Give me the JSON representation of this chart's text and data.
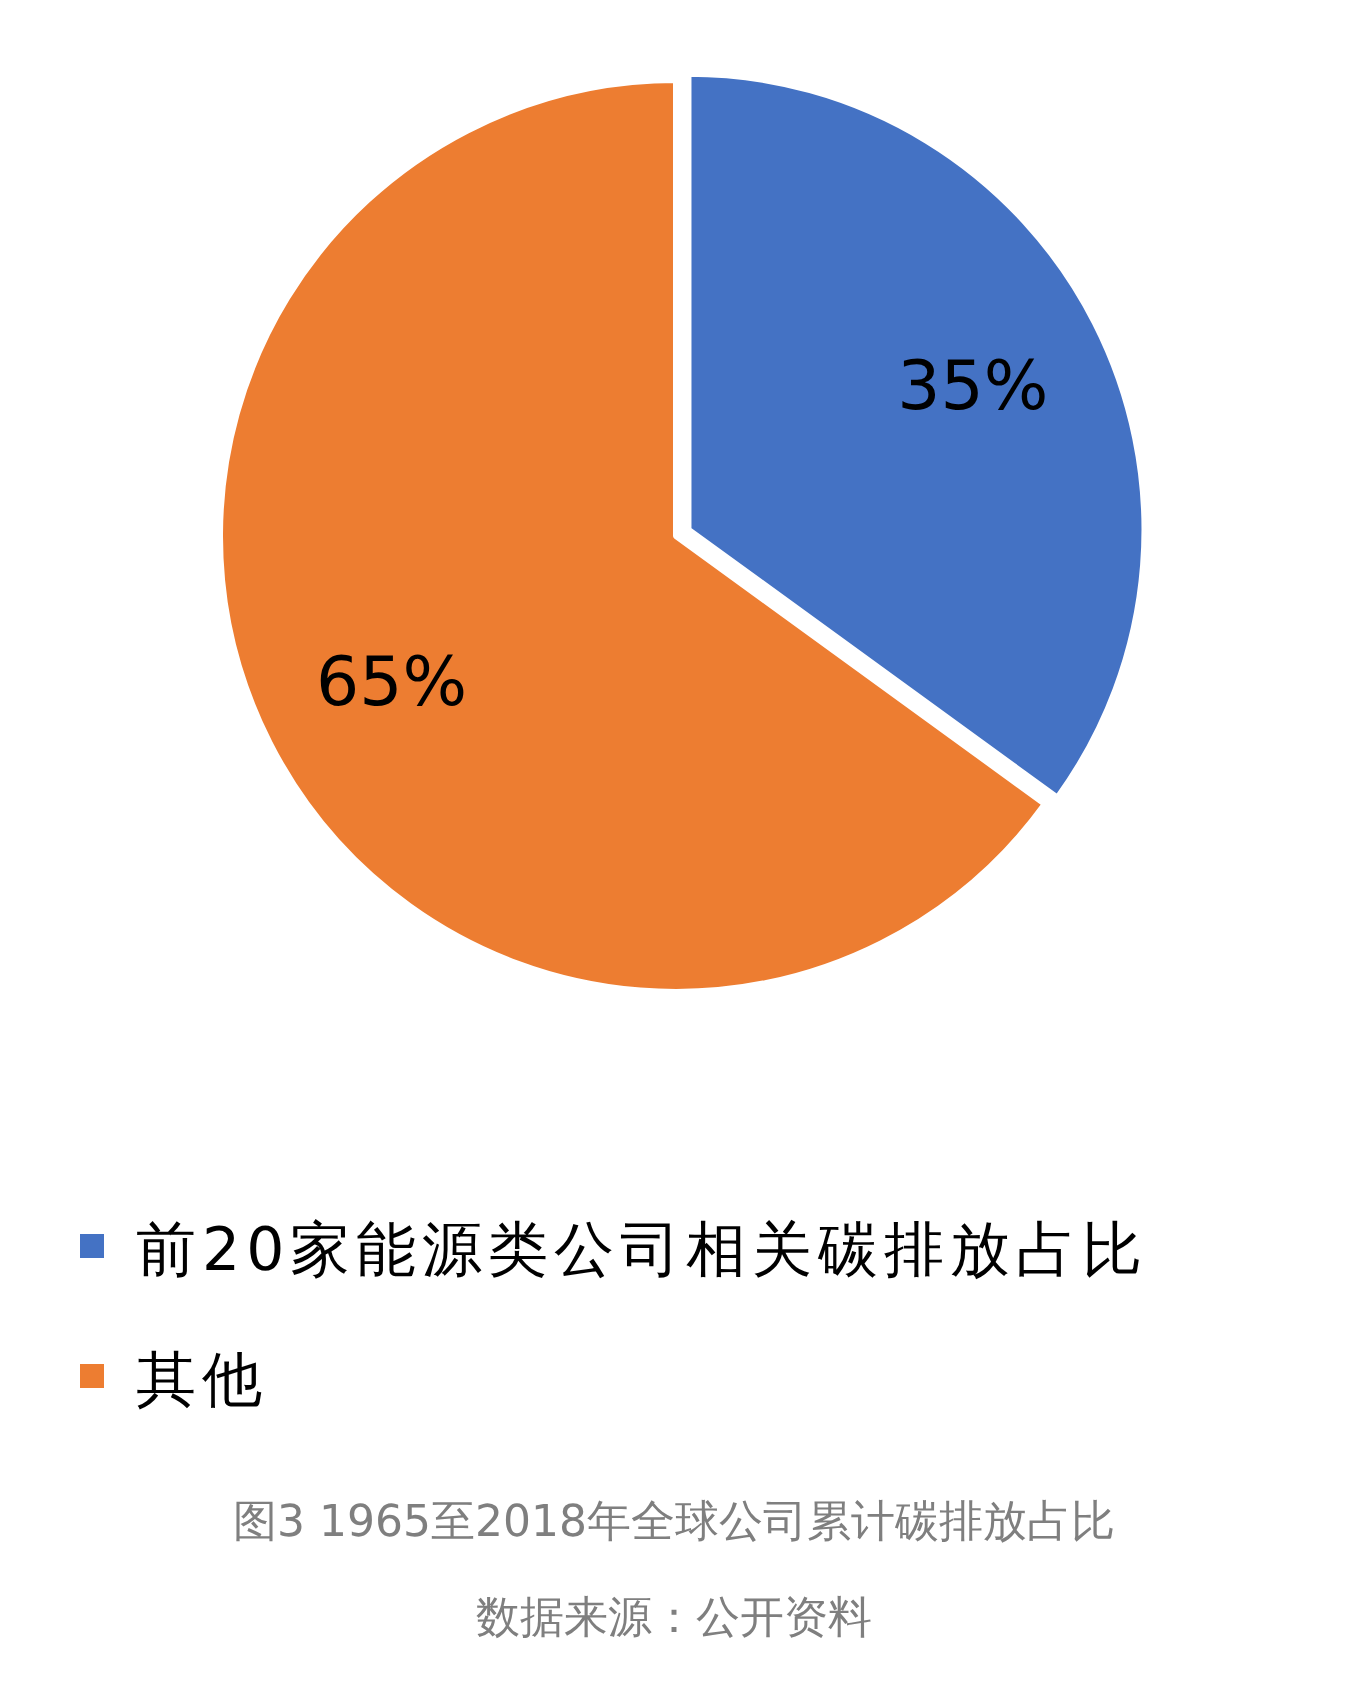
{
  "chart_data": {
    "type": "pie",
    "title": "图3  1965至2018年全球公司累计碳排放占比",
    "categories": [
      "前20家能源类公司相关碳排放占比",
      "其他"
    ],
    "values": [
      35,
      65
    ],
    "colors": [
      "#4472c4",
      "#ed7d31"
    ],
    "value_labels": [
      "35%",
      "65%"
    ],
    "legend": "bottom",
    "annotations": [
      "数据来源：公开资料"
    ]
  }
}
